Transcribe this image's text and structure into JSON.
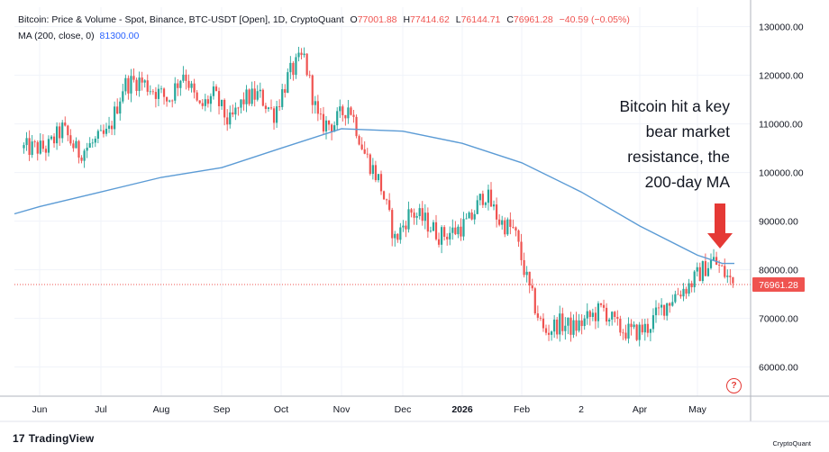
{
  "header": {
    "symbol": "Bitcoin: Price & Volume - Spot, Binance, BTC-USDT [Open], 1D, CryptoQuant",
    "o_label": "O",
    "o": "77001.88",
    "h_label": "H",
    "h": "77414.62",
    "l_label": "L",
    "l": "76144.71",
    "c_label": "C",
    "c": "76961.28",
    "change": "−40.59 (−0.05%)",
    "ma_label": "MA (200, close, 0)",
    "ma_value": "81300.00"
  },
  "annotation": "Bitcoin hit a key\nbear market\nresistance, the\n200-day MA",
  "branding": {
    "tradingview": "TradingView",
    "tradingview_mark": "17",
    "cryptoquant": "CryptoQuant"
  },
  "help_icon": "?",
  "colors": {
    "up": "#26a69a",
    "down": "#ef5350",
    "ma": "#5b9bd5",
    "arrow": "#e53935",
    "last_price": "#ef5350"
  },
  "chart_data": {
    "type": "candlestick",
    "y_axis": {
      "ticks": [
        60000,
        70000,
        80000,
        90000,
        100000,
        110000,
        120000,
        130000
      ],
      "tick_labels": [
        "60000.00",
        "70000.00",
        "80000.00",
        "90000.00",
        "100000.00",
        "110000.00",
        "120000.00",
        "130000.00"
      ],
      "range": [
        54000,
        134000
      ],
      "position": "right"
    },
    "x_axis": {
      "labels": [
        "Jun",
        "Jul",
        "Aug",
        "Sep",
        "Oct",
        "Nov",
        "Dec",
        "2026",
        "Feb",
        "2",
        "Apr",
        "May"
      ]
    },
    "last_price": "76961.28",
    "price_path": [
      [
        "Jun",
        105000
      ],
      [
        "Jun",
        109000
      ],
      [
        "Jun",
        104000
      ],
      [
        "Jun",
        106000
      ],
      [
        "Jul",
        108000
      ],
      [
        "Jul",
        118000
      ],
      [
        "Jul",
        119000
      ],
      [
        "Jul",
        117000
      ],
      [
        "Aug",
        115000
      ],
      [
        "Aug",
        121000
      ],
      [
        "Aug",
        113000
      ],
      [
        "Aug",
        116000
      ],
      [
        "Sep",
        110000
      ],
      [
        "Sep",
        115000
      ],
      [
        "Sep",
        116000
      ],
      [
        "Sep",
        112000
      ],
      [
        "Oct",
        120000
      ],
      [
        "Oct",
        124000
      ],
      [
        "Oct",
        110000
      ],
      [
        "Oct",
        110000
      ],
      [
        "Nov",
        114000
      ],
      [
        "Nov",
        104000
      ],
      [
        "Nov",
        98000
      ],
      [
        "Nov",
        86000
      ],
      [
        "Dec",
        92000
      ],
      [
        "Dec",
        90000
      ],
      [
        "Dec",
        87000
      ],
      [
        "Dec",
        88000
      ],
      [
        "2026",
        90000
      ],
      [
        "2026",
        96000
      ],
      [
        "2026",
        90000
      ],
      [
        "2026",
        88000
      ],
      [
        "Feb",
        76000
      ],
      [
        "Feb",
        67000
      ],
      [
        "Feb",
        69000
      ],
      [
        "Feb",
        68000
      ],
      [
        "2",
        70000
      ],
      [
        "2",
        72000
      ],
      [
        "2",
        68000
      ],
      [
        "2",
        67000
      ],
      [
        "Apr",
        68000
      ],
      [
        "Apr",
        72000
      ],
      [
        "Apr",
        75000
      ],
      [
        "Apr",
        77000
      ],
      [
        "May",
        80000
      ],
      [
        "May",
        82000
      ],
      [
        "May",
        79500
      ],
      [
        "May",
        76961
      ]
    ],
    "ma_path": [
      [
        "Jun",
        93000
      ],
      [
        "Jul",
        96000
      ],
      [
        "Aug",
        99000
      ],
      [
        "Sep",
        101000
      ],
      [
        "Oct",
        105000
      ],
      [
        "Nov",
        109000
      ],
      [
        "Dec",
        108500
      ],
      [
        "2026",
        106000
      ],
      [
        "Feb",
        102000
      ],
      [
        "2",
        96000
      ],
      [
        "Apr",
        89000
      ],
      [
        "May",
        83000
      ],
      [
        "May",
        81300
      ]
    ]
  }
}
